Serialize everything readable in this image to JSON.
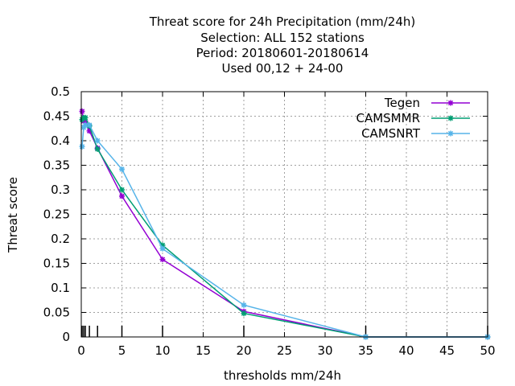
{
  "chart_data": {
    "type": "line",
    "title_lines": [
      "Threat score  for 24h Precipitation (mm/24h)",
      "Selection: ALL    152 stations",
      "Period: 20180601-20180614",
      "Used  00,12  + 24-00"
    ],
    "xlabel": "thresholds mm/24h",
    "ylabel": "Threat score",
    "xlim": [
      0,
      50
    ],
    "ylim": [
      0,
      0.5
    ],
    "xticks": [
      0,
      5,
      10,
      15,
      20,
      25,
      30,
      35,
      40,
      45,
      50
    ],
    "yticks": [
      0,
      0.05,
      0.1,
      0.15,
      0.2,
      0.25,
      0.3,
      0.35,
      0.4,
      0.45,
      0.5
    ],
    "xtick_labels": [
      "0",
      "5",
      "10",
      "15",
      "20",
      "25",
      "30",
      "35",
      "40",
      "45",
      "50"
    ],
    "ytick_labels": [
      "0",
      "0.05",
      "0.1",
      "0.15",
      "0.2",
      "0.25",
      "0.3",
      "0.35",
      "0.4",
      "0.45",
      "0.5"
    ],
    "grid": true,
    "legend_position": "top-right",
    "threshold_marks": [
      0.1,
      0.3,
      0.5,
      1,
      2,
      5,
      10,
      20,
      35,
      50
    ],
    "series": [
      {
        "name": "Tegen",
        "color": "#9400d3",
        "marker": "asterisk",
        "x": [
          0.1,
          0.3,
          0.5,
          1,
          2,
          5,
          10,
          20,
          35,
          50
        ],
        "y": [
          0.46,
          0.44,
          0.44,
          0.42,
          0.385,
          0.287,
          0.158,
          0.052,
          0.0,
          0.0
        ]
      },
      {
        "name": "CAMSMMR",
        "color": "#009e73",
        "marker": "asterisk",
        "x": [
          0.1,
          0.3,
          0.5,
          1,
          2,
          5,
          10,
          20,
          35,
          50
        ],
        "y": [
          0.443,
          0.447,
          0.447,
          0.43,
          0.383,
          0.3,
          0.187,
          0.048,
          0.0,
          0.0
        ]
      },
      {
        "name": "CAMSNRT",
        "color": "#56b4e9",
        "marker": "asterisk",
        "x": [
          0.1,
          0.3,
          0.5,
          1,
          2,
          5,
          10,
          20,
          35,
          50
        ],
        "y": [
          0.388,
          0.427,
          0.432,
          0.432,
          0.4,
          0.342,
          0.18,
          0.065,
          0.0,
          0.0
        ]
      }
    ]
  }
}
